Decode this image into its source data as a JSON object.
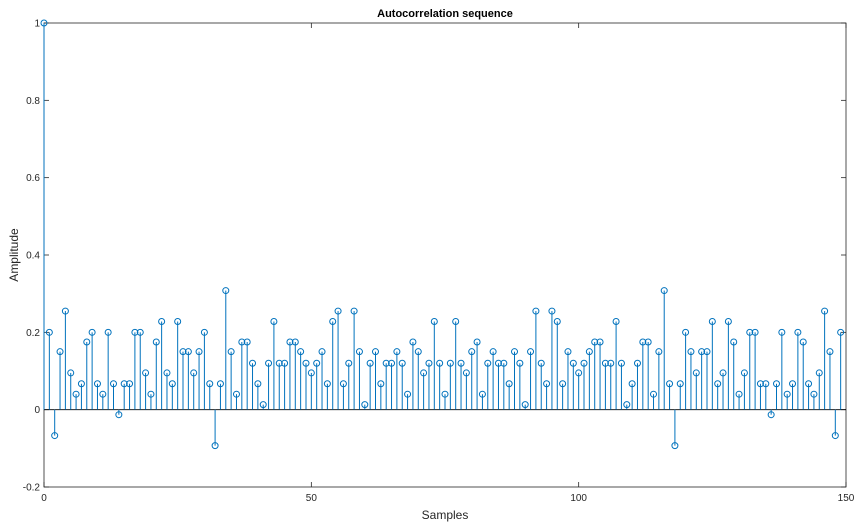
{
  "chart_data": {
    "type": "stem",
    "title": "Autocorrelation sequence",
    "xlabel": "Samples",
    "ylabel": "Amplitude",
    "xlim": [
      0,
      150
    ],
    "ylim": [
      -0.2,
      1
    ],
    "x_ticks": [
      0,
      50,
      100,
      150
    ],
    "y_ticks": [
      -0.2,
      0,
      0.2,
      0.4,
      0.6,
      0.8,
      1
    ],
    "y_tick_labels": [
      "-0.2",
      "0",
      "0.2",
      "0.4",
      "0.6",
      "0.8",
      "1"
    ],
    "grid": false,
    "color": "#0072BD",
    "series": [
      {
        "x": [
          0,
          1,
          2,
          3,
          4,
          5,
          6,
          7,
          8,
          9,
          10,
          11,
          12,
          13,
          14,
          15,
          16,
          17,
          18,
          19,
          20,
          21,
          22,
          23,
          24,
          25,
          26,
          27,
          28,
          29,
          30,
          31,
          32,
          33,
          34,
          35,
          36,
          37,
          38,
          39,
          40,
          41,
          42,
          43,
          44,
          45,
          46,
          47,
          48,
          49,
          50,
          51,
          52,
          53,
          54,
          55,
          56,
          57,
          58,
          59,
          60,
          61,
          62,
          63,
          64,
          65,
          66,
          67,
          68,
          69,
          70,
          71,
          72,
          73,
          74,
          75,
          76,
          77,
          78,
          79,
          80,
          81,
          82,
          83,
          84,
          85,
          86,
          87,
          88,
          89,
          90,
          91,
          92,
          93,
          94,
          95,
          96,
          97,
          98,
          99,
          100,
          101,
          102,
          103,
          104,
          105,
          106,
          107,
          108,
          109,
          110,
          111,
          112,
          113,
          114,
          115,
          116,
          117,
          118,
          119,
          120,
          121,
          122,
          123,
          124,
          125,
          126,
          127,
          128,
          129,
          130,
          131,
          132,
          133,
          134,
          135,
          136,
          137,
          138,
          139,
          140,
          141,
          142,
          143,
          144,
          145,
          146,
          147,
          148,
          149
        ],
        "values": [
          1.0,
          0.2,
          -0.067,
          0.15,
          0.255,
          0.095,
          0.04,
          0.067,
          0.175,
          0.2,
          0.067,
          0.04,
          0.2,
          0.067,
          -0.013,
          0.067,
          0.067,
          0.2,
          0.2,
          0.095,
          0.04,
          0.175,
          0.228,
          0.095,
          0.067,
          0.228,
          0.15,
          0.15,
          0.095,
          0.15,
          0.2,
          0.067,
          -0.093,
          0.067,
          0.308,
          0.15,
          0.04,
          0.175,
          0.175,
          0.12,
          0.067,
          0.013,
          0.12,
          0.228,
          0.12,
          0.12,
          0.175,
          0.175,
          0.15,
          0.12,
          0.095,
          0.12,
          0.15,
          0.067,
          0.228,
          0.255,
          0.067,
          0.12,
          0.255,
          0.15,
          0.013,
          0.12,
          0.15,
          0.067,
          0.12,
          0.12,
          0.15,
          0.12,
          0.04,
          0.175,
          0.15,
          0.095,
          0.12,
          0.228,
          0.12,
          0.04,
          0.12,
          0.228,
          0.12,
          0.095,
          0.15,
          0.175,
          0.04,
          0.12,
          0.15,
          0.12,
          0.12,
          0.067,
          0.15,
          0.12,
          0.013,
          0.15,
          0.255,
          0.12,
          0.067,
          0.255,
          0.228,
          0.067,
          0.15,
          0.12,
          0.095,
          0.12,
          0.15,
          0.175,
          0.175,
          0.12,
          0.12,
          0.228,
          0.12,
          0.013,
          0.067,
          0.12,
          0.175,
          0.175,
          0.04,
          0.15,
          0.308,
          0.067,
          -0.093,
          0.067,
          0.2,
          0.15,
          0.095,
          0.15,
          0.15,
          0.228,
          0.067,
          0.095,
          0.228,
          0.175,
          0.04,
          0.095,
          0.2,
          0.2,
          0.067,
          0.067,
          -0.013,
          0.067,
          0.2,
          0.04,
          0.067,
          0.2,
          0.175,
          0.067,
          0.04,
          0.095,
          0.255,
          0.15,
          -0.067,
          0.2
        ]
      }
    ]
  }
}
